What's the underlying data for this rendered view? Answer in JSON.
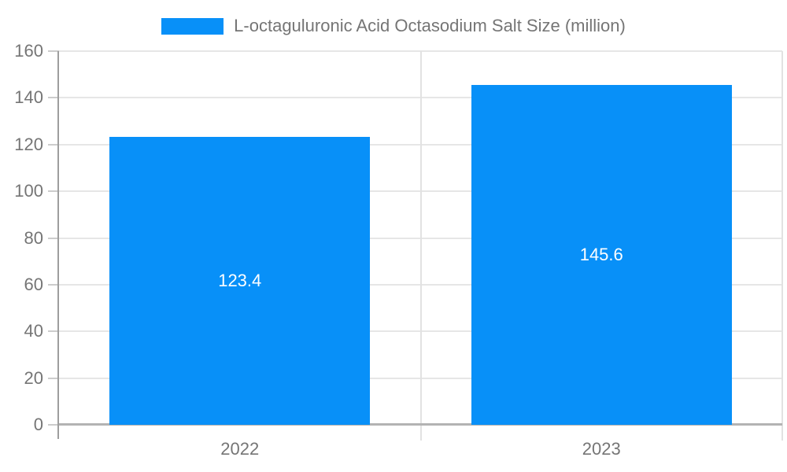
{
  "chart_data": {
    "type": "bar",
    "title": "L-octaguluronic Acid Octasodium Salt Size (million)",
    "legend_position": "top-center",
    "categories": [
      "2022",
      "2023"
    ],
    "series": [
      {
        "name": "L-octaguluronic Acid Octasodium Salt Size (million)",
        "values": [
          123.4,
          145.6
        ]
      }
    ],
    "value_labels": [
      "123.4",
      "145.6"
    ],
    "xlabel": "",
    "ylabel": "",
    "ylim": [
      0,
      160
    ],
    "y_ticks": [
      "0",
      "20",
      "40",
      "60",
      "80",
      "100",
      "120",
      "140",
      "160"
    ],
    "grid": true,
    "colors": {
      "bar": "#0890f8",
      "value_label": "#ffffff",
      "axis_text": "#757575",
      "gridline": "#e6e6e6",
      "divider": "#e2e2e2",
      "tick": "#cccccc",
      "axis_line": "#9e9e9e",
      "baseline": "#b3b3b3",
      "background": "#ffffff"
    }
  }
}
